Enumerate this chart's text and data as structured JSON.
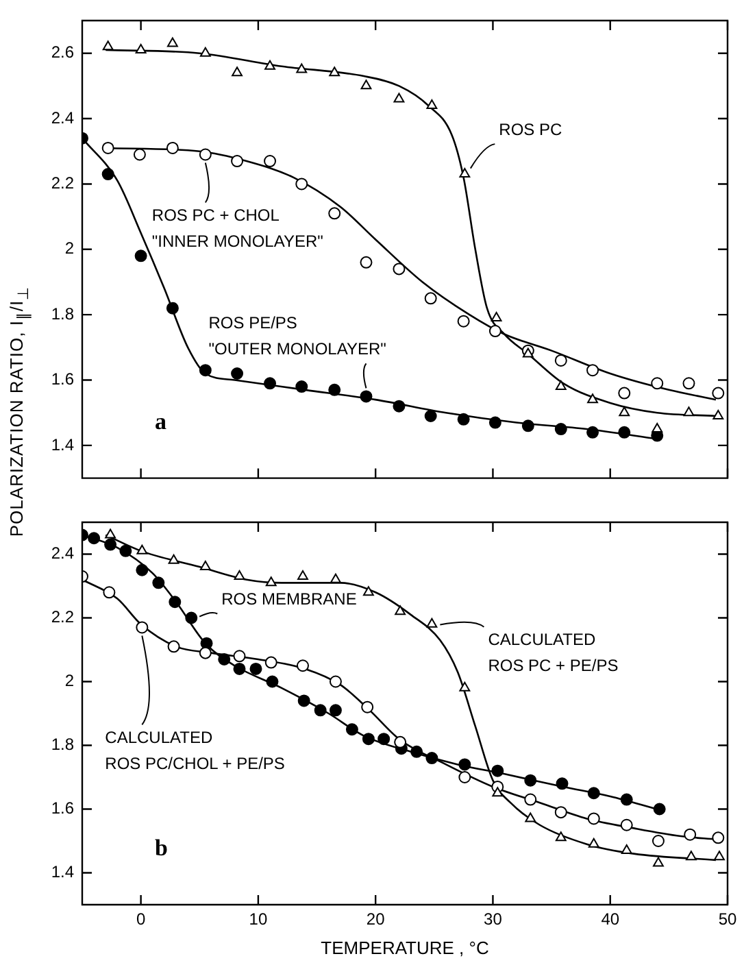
{
  "chart_data": [
    {
      "type": "scatter",
      "ylabel": "POLARIZATION RATIO,  I$_{∥}$/I$_{⊥}$",
      "xlim": [
        -5,
        50
      ],
      "xticks": [
        0,
        10,
        20,
        30,
        40,
        50
      ],
      "ylim": [
        1.3,
        2.7
      ],
      "yticks": [
        1.4,
        1.6,
        1.8,
        2.0,
        2.2,
        2.4,
        2.6
      ],
      "tick_labels": "y",
      "grid": false,
      "legend": false,
      "annotations": [
        "a"
      ],
      "series": [
        {
          "name": "ROS PC",
          "marker": "triangle",
          "color": "#000000",
          "x": [
            -2.8,
            0,
            2.7,
            5.5,
            8.2,
            11,
            13.7,
            16.5,
            19.2,
            22,
            24.8,
            27.6,
            30.3,
            33,
            35.8,
            38.5,
            41.2,
            44,
            46.7,
            49.2
          ],
          "values": [
            2.62,
            2.61,
            2.63,
            2.6,
            2.54,
            2.56,
            2.55,
            2.54,
            2.5,
            2.46,
            2.44,
            2.23,
            1.79,
            1.68,
            1.58,
            1.54,
            1.5,
            1.45,
            1.5,
            1.49
          ]
        },
        {
          "name": "ROS PC + CHOL\n\"INNER MONOLAYER\"",
          "marker": "circle",
          "color": "#000000",
          "x": [
            -2.8,
            -0.1,
            2.7,
            5.5,
            8.2,
            11,
            13.7,
            16.5,
            19.2,
            22,
            24.7,
            27.5,
            30.2,
            33,
            35.8,
            38.5,
            41.2,
            44,
            46.7,
            49.2
          ],
          "values": [
            2.31,
            2.29,
            2.31,
            2.29,
            2.27,
            2.27,
            2.2,
            2.11,
            1.96,
            1.94,
            1.85,
            1.78,
            1.75,
            1.69,
            1.66,
            1.63,
            1.56,
            1.59,
            1.59,
            1.56
          ]
        },
        {
          "name": "ROS PE/PS\n\"OUTER MONOLAYER\"",
          "marker": "circle",
          "color": "#000000",
          "x": [
            -5,
            -2.8,
            0,
            2.7,
            5.5,
            8.2,
            11,
            13.7,
            16.5,
            19.2,
            22,
            24.7,
            27.5,
            30.2,
            33,
            35.8,
            38.5,
            41.2,
            44
          ],
          "values": [
            2.34,
            2.23,
            1.98,
            1.82,
            1.63,
            1.62,
            1.59,
            1.58,
            1.57,
            1.55,
            1.52,
            1.49,
            1.48,
            1.47,
            1.46,
            1.45,
            1.44,
            1.44,
            1.43
          ]
        },
        {
          "type": "line",
          "marker": "none",
          "color": "#000000",
          "x": [
            -3,
            5,
            12,
            19,
            22,
            24.5,
            26.5,
            27.5,
            28.5,
            29.5,
            31,
            33,
            36,
            40,
            44,
            49
          ],
          "values": [
            2.61,
            2.6,
            2.56,
            2.53,
            2.5,
            2.44,
            2.35,
            2.22,
            2.0,
            1.82,
            1.74,
            1.68,
            1.59,
            1.53,
            1.5,
            1.49
          ]
        },
        {
          "type": "line",
          "marker": "none",
          "color": "#000000",
          "x": [
            -3,
            5,
            9,
            13,
            17,
            20,
            24,
            28,
            31,
            35,
            40,
            45,
            49
          ],
          "values": [
            2.31,
            2.3,
            2.27,
            2.22,
            2.13,
            2.03,
            1.9,
            1.8,
            1.74,
            1.69,
            1.62,
            1.57,
            1.54
          ]
        },
        {
          "type": "line",
          "marker": "none",
          "color": "#000000",
          "x": [
            -5,
            -2,
            0,
            2,
            4,
            5.5,
            8,
            14,
            20,
            26,
            32,
            38,
            44
          ],
          "values": [
            2.34,
            2.21,
            2.05,
            1.88,
            1.7,
            1.62,
            1.6,
            1.57,
            1.54,
            1.5,
            1.47,
            1.45,
            1.42
          ]
        }
      ]
    },
    {
      "type": "scatter",
      "xlabel": "TEMPERATURE , °C",
      "xlim": [
        -5,
        50
      ],
      "xticks": [
        0,
        10,
        20,
        30,
        40,
        50
      ],
      "ylim": [
        1.3,
        2.5
      ],
      "yticks": [
        1.4,
        1.6,
        1.8,
        2.0,
        2.2,
        2.4
      ],
      "grid": false,
      "legend": false,
      "annotations": [
        "b"
      ],
      "series": [
        {
          "name": "CALCULATED\nROS PC + PE/PS",
          "marker": "triangle",
          "color": "#000000",
          "x": [
            -2.6,
            0.1,
            2.8,
            5.5,
            8.4,
            11.1,
            13.8,
            16.6,
            19.4,
            22.1,
            24.8,
            27.6,
            30.4,
            33.2,
            35.8,
            38.6,
            41.4,
            44.1,
            46.9,
            49.3
          ],
          "values": [
            2.46,
            2.41,
            2.38,
            2.36,
            2.33,
            2.31,
            2.33,
            2.32,
            2.28,
            2.22,
            2.18,
            1.98,
            1.65,
            1.57,
            1.51,
            1.49,
            1.47,
            1.43,
            1.45,
            1.45
          ]
        },
        {
          "name": "CALCULATED\nROS PC/CHOL + PE/PS",
          "marker": "circle",
          "color": "#000000",
          "x": [
            -5,
            -2.7,
            0.1,
            2.8,
            5.5,
            8.4,
            11.1,
            13.8,
            16.6,
            19.3,
            22.1,
            27.6,
            30.4,
            33.2,
            35.8,
            38.6,
            41.4,
            44.1,
            46.8,
            49.2
          ],
          "values": [
            2.33,
            2.28,
            2.17,
            2.11,
            2.09,
            2.08,
            2.06,
            2.05,
            2.0,
            1.92,
            1.81,
            1.7,
            1.67,
            1.63,
            1.59,
            1.57,
            1.55,
            1.5,
            1.52,
            1.51
          ]
        },
        {
          "name": "ROS MEMBRANE",
          "marker": "circle",
          "color": "#000000",
          "x": [
            -5,
            -4,
            -2.6,
            -1.3,
            0.1,
            1.5,
            2.9,
            4.3,
            5.6,
            7.1,
            8.4,
            9.8,
            11.2,
            13.9,
            15.3,
            16.6,
            18,
            19.4,
            20.7,
            22.2,
            23.5,
            24.8,
            27.6,
            30.4,
            33.2,
            35.9,
            38.6,
            41.4,
            44.2
          ],
          "values": [
            2.46,
            2.45,
            2.43,
            2.41,
            2.35,
            2.31,
            2.25,
            2.2,
            2.12,
            2.07,
            2.04,
            2.04,
            2.0,
            1.94,
            1.91,
            1.91,
            1.85,
            1.82,
            1.82,
            1.79,
            1.78,
            1.76,
            1.74,
            1.72,
            1.69,
            1.68,
            1.65,
            1.63,
            1.6
          ]
        },
        {
          "type": "line",
          "marker": "none",
          "color": "#000000",
          "x": [
            -3,
            0,
            5,
            9,
            12,
            17,
            20,
            23,
            25.5,
            27,
            28.5,
            30,
            31.5,
            34,
            38,
            42,
            49
          ],
          "values": [
            2.46,
            2.41,
            2.36,
            2.32,
            2.31,
            2.31,
            2.28,
            2.21,
            2.13,
            2.03,
            1.86,
            1.69,
            1.62,
            1.55,
            1.49,
            1.46,
            1.44
          ]
        },
        {
          "type": "line",
          "marker": "none",
          "color": "#000000",
          "x": [
            -5,
            -2,
            0,
            3,
            6,
            10,
            14,
            17,
            19.5,
            22,
            26,
            30,
            34,
            38,
            42,
            46,
            49
          ],
          "values": [
            2.32,
            2.26,
            2.18,
            2.11,
            2.09,
            2.07,
            2.04,
            1.99,
            1.91,
            1.82,
            1.74,
            1.67,
            1.62,
            1.57,
            1.54,
            1.515,
            1.505
          ]
        },
        {
          "type": "line",
          "marker": "none",
          "color": "#000000",
          "x": [
            -5,
            -2,
            1,
            3,
            5.5,
            8,
            12,
            16,
            19,
            23,
            27,
            31,
            36,
            40,
            44
          ],
          "values": [
            2.46,
            2.42,
            2.34,
            2.25,
            2.12,
            2.05,
            1.98,
            1.9,
            1.83,
            1.78,
            1.74,
            1.71,
            1.67,
            1.64,
            1.6
          ]
        }
      ]
    }
  ]
}
